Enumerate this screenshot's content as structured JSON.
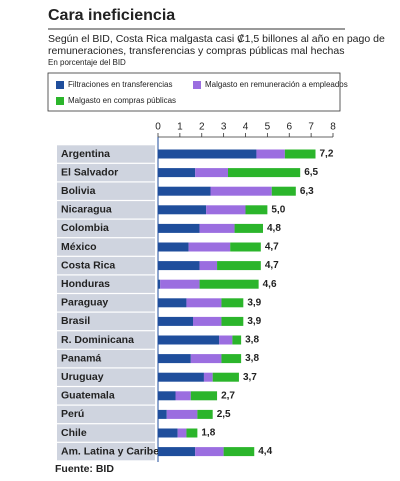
{
  "chart_data": {
    "type": "stacked-bar-horizontal",
    "title": "Cara ineficiencia",
    "subtitle": [
      "Según el BID, Costa Rica malgasta casi ₡1,5 billones al año en pago de",
      "remuneraciones, transferencias y compras públicas mal hechas"
    ],
    "note": "En porcentaje del BID",
    "source": "Fuente: BID",
    "categories": [
      "Argentina",
      "El Salvador",
      "Bolivia",
      "Nicaragua",
      "Colombia",
      "México",
      "Costa Rica",
      "Honduras",
      "Paraguay",
      "Brasil",
      "R. Dominicana",
      "Panamá",
      "Uruguay",
      "Guatemala",
      "Perú",
      "Chile",
      "Am. Latina y Caribe"
    ],
    "series": [
      {
        "name": "Filtraciones en transferencias",
        "color": "#1f4e9c",
        "values": [
          4.5,
          1.7,
          2.4,
          2.2,
          1.9,
          1.4,
          1.9,
          0.1,
          1.3,
          1.6,
          2.8,
          1.5,
          2.1,
          0.8,
          0.4,
          0.9,
          1.7
        ]
      },
      {
        "name": "Malgasto en remuneración a empleados",
        "color": "#9b6ee0",
        "values": [
          1.3,
          1.5,
          2.8,
          1.8,
          1.6,
          1.9,
          0.8,
          1.8,
          1.6,
          1.3,
          0.6,
          1.4,
          0.4,
          0.7,
          1.4,
          0.4,
          1.3
        ]
      },
      {
        "name": "Malgasto en compras públicas",
        "color": "#2bb52b",
        "values": [
          1.4,
          3.3,
          1.1,
          1.0,
          1.3,
          1.4,
          2.0,
          2.7,
          1.0,
          1.0,
          0.4,
          0.9,
          1.2,
          1.2,
          0.7,
          0.5,
          1.4
        ]
      }
    ],
    "totals": [
      7.2,
      6.5,
      6.3,
      5.0,
      4.8,
      4.7,
      4.7,
      4.6,
      3.9,
      3.9,
      3.8,
      3.8,
      3.7,
      2.7,
      2.5,
      1.8,
      4.4
    ],
    "total_labels": [
      "7,2",
      "6,5",
      "6,3",
      "5,0",
      "4,8",
      "4,7",
      "4,7",
      "4,6",
      "3,9",
      "3,9",
      "3,8",
      "3,8",
      "3,7",
      "2,7",
      "2,5",
      "1,8",
      "4,4"
    ],
    "xlim": [
      0,
      8
    ],
    "xticks": [
      0,
      1,
      2,
      3,
      4,
      5,
      6,
      7,
      8
    ],
    "grid": false
  }
}
